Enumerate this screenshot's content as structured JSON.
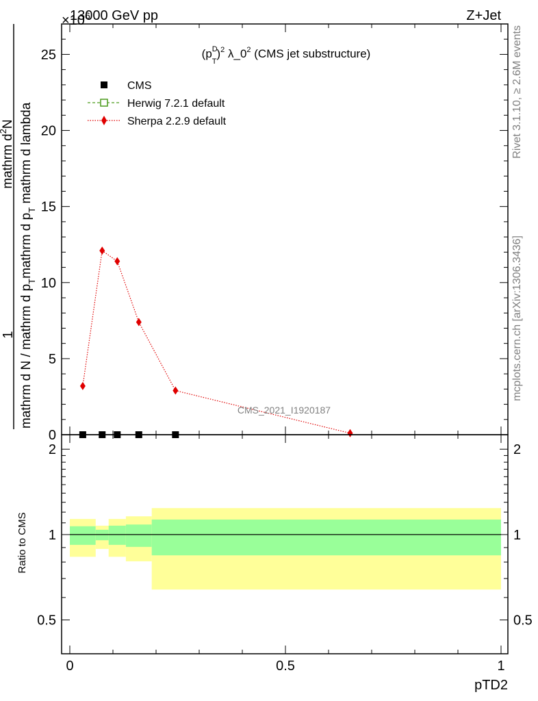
{
  "header": {
    "energy_label": "13000 GeV pp",
    "process_label": "Z+Jet",
    "exponent_label": "×10",
    "exponent_power": "6"
  },
  "side_labels": {
    "rivet": "Rivet 3.1.10, ≥ 2.6M events",
    "mcplots": "mcplots.cern.ch [arXiv:1306.3436]"
  },
  "watermark": "CMS_2021_I1920187",
  "chart_data": [
    {
      "type": "line",
      "panel": "main",
      "title_parts": {
        "p": "(p",
        "sup_d": "D",
        "sub_t": "T",
        "sup_2": "2",
        "lambda": " λ_0",
        "sup_2b": "2",
        "rest": " (CMS jet substructure)"
      },
      "ylabel": {
        "top": "1",
        "bottom": "mathrm d N / mathrm d p",
        "bottom_sub": "T",
        "bottom_rest": "mathrm d p",
        "bottom_sub2": "T",
        "bottom_end": " mathrm d lambda",
        "num": "mathrm d",
        "num_sup": "2",
        "num_end": "N"
      },
      "xlim": [
        0,
        1
      ],
      "ylim": [
        0,
        27
      ],
      "y_ticks": [
        {
          "v": 0,
          "label": "0"
        },
        {
          "v": 5,
          "label": "5"
        },
        {
          "v": 10,
          "label": "10"
        },
        {
          "v": 15,
          "label": "15"
        },
        {
          "v": 20,
          "label": "20"
        },
        {
          "v": 25,
          "label": "25"
        }
      ],
      "legend_position": "top-left",
      "series": [
        {
          "name": "CMS",
          "color": "#000000",
          "marker": "square",
          "x": [
            0.03,
            0.075,
            0.11,
            0.16,
            0.245
          ],
          "y": [
            0,
            0,
            0,
            0,
            0
          ]
        },
        {
          "name": "Herwig 7.2.1 default",
          "color": "#4a9a1a",
          "marker": "open-square",
          "x": [],
          "y": []
        },
        {
          "name": "Sherpa 2.2.9 default",
          "color": "#e00000",
          "marker": "diamond",
          "x": [
            0.03,
            0.075,
            0.11,
            0.16,
            0.245,
            0.65
          ],
          "y": [
            3.2,
            12.1,
            11.4,
            7.4,
            2.9,
            0.1
          ]
        }
      ]
    },
    {
      "type": "area",
      "panel": "ratio",
      "ylabel": "Ratio to CMS",
      "xlabel": "pTD2",
      "xlim": [
        0,
        1
      ],
      "ylim": [
        0.38,
        2.25
      ],
      "x_ticks": [
        {
          "v": 0,
          "label": "0"
        },
        {
          "v": 0.5,
          "label": "0.5"
        },
        {
          "v": 1,
          "label": "1"
        }
      ],
      "y_ticks": [
        {
          "v": 0.5,
          "label": "0.5"
        },
        {
          "v": 1,
          "label": "1"
        },
        {
          "v": 2,
          "label": "2"
        }
      ],
      "bins": [
        {
          "lo": 0.0,
          "hi": 0.06,
          "yellow": [
            0.835,
            1.135
          ],
          "green": [
            0.92,
            1.07
          ]
        },
        {
          "lo": 0.06,
          "hi": 0.09,
          "yellow": [
            0.89,
            1.075
          ],
          "green": [
            0.955,
            1.04
          ]
        },
        {
          "lo": 0.09,
          "hi": 0.13,
          "yellow": [
            0.835,
            1.135
          ],
          "green": [
            0.92,
            1.075
          ]
        },
        {
          "lo": 0.13,
          "hi": 0.19,
          "yellow": [
            0.805,
            1.16
          ],
          "green": [
            0.905,
            1.085
          ]
        },
        {
          "lo": 0.19,
          "hi": 1.0,
          "yellow": [
            0.64,
            1.24
          ],
          "green": [
            0.845,
            1.13
          ]
        }
      ],
      "band_colors": {
        "yellow": "#ffff99",
        "green": "#99ff99"
      }
    }
  ]
}
